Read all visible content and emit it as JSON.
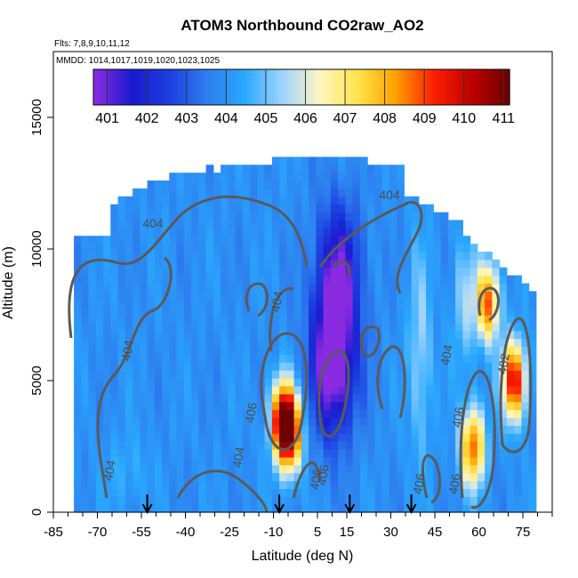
{
  "chart_data": {
    "type": "heatmap",
    "title": "ATOM3 Northbound CO2raw_AO2",
    "flights_label": "Flts: 7,8,9,10,11,12",
    "dates_label": "MMDD: 1014,1017,1019,1020,1023,1025",
    "xlabel": "Latitude (deg N)",
    "ylabel": "Altitude (m)",
    "xlim": [
      -85,
      85
    ],
    "ylim": [
      0,
      17500
    ],
    "x_ticks": [
      -85,
      -70,
      -55,
      -40,
      -25,
      -10,
      5,
      15,
      30,
      45,
      60,
      75
    ],
    "y_ticks": [
      0,
      5000,
      10000,
      15000
    ],
    "colorbar": {
      "ticks": [
        401,
        402,
        403,
        404,
        405,
        406,
        407,
        408,
        409,
        410,
        411
      ],
      "colors": [
        "#8a2be2",
        "#1a1ad0",
        "#1c3fe0",
        "#2e7fef",
        "#29a9ff",
        "#9fd4ff",
        "#fff6c0",
        "#ffe44a",
        "#ffa000",
        "#ff2000",
        "#c00000",
        "#6e0000"
      ]
    },
    "contour_labels": [
      "404",
      "404",
      "404",
      "404",
      "404",
      "404",
      "404",
      "406",
      "406",
      "406",
      "406",
      "402",
      "406",
      "406"
    ],
    "flight_arrows_lat": [
      -53,
      -8,
      16,
      37
    ],
    "data_coverage": {
      "lat_range": [
        -78,
        80
      ],
      "max_altitude_m": 13500
    },
    "features": [
      {
        "lat": -7,
        "alt_m": 3500,
        "co2_ppm": 410
      },
      {
        "lat": -4,
        "alt_m": 3000,
        "co2_ppm": 409
      },
      {
        "lat": 72,
        "alt_m": 5000,
        "co2_ppm": 410
      },
      {
        "lat": 58,
        "alt_m": 2500,
        "co2_ppm": 409
      },
      {
        "lat": 63,
        "alt_m": 8000,
        "co2_ppm": 409
      },
      {
        "lat": 10,
        "alt_m": 5500,
        "co2_ppm": 401
      },
      {
        "lat": 12,
        "alt_m": 9000,
        "co2_ppm": 402
      }
    ]
  }
}
